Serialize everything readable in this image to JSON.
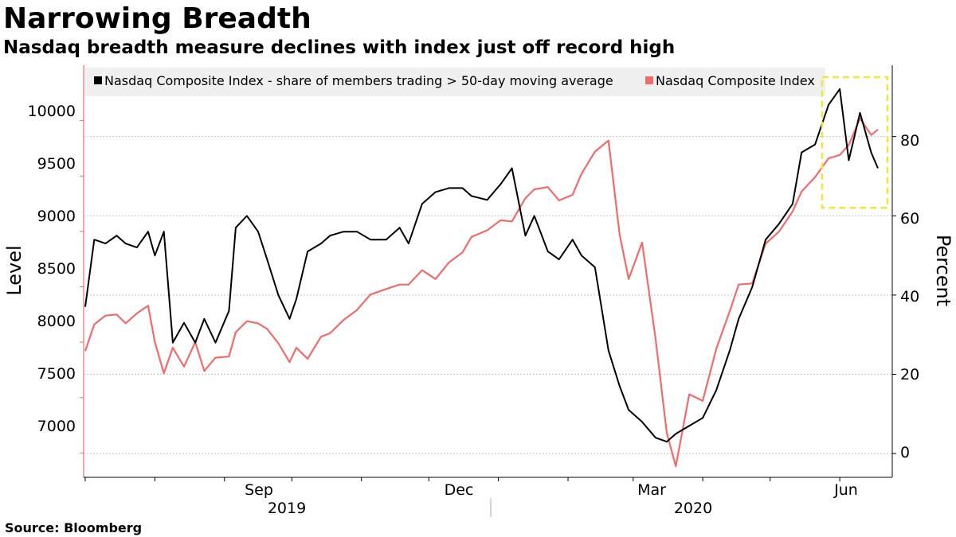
{
  "title": "Narrowing Breadth",
  "subtitle": "Nasdaq breadth measure declines with index just off record high",
  "source": "Source: Bloomberg",
  "chart_data": {
    "type": "line",
    "legend_position": "top",
    "ylabel_left": "Level",
    "ylabel_right": "Percent",
    "ylim_left": [
      6780,
      10500
    ],
    "ylim_right": [
      -6,
      98
    ],
    "yticks_left": [
      "7000",
      "7500",
      "8000",
      "8500",
      "9000",
      "9500",
      "10000"
    ],
    "yticks_right": [
      "0",
      "20",
      "40",
      "60",
      "80"
    ],
    "x_month_labels": [
      "Sep",
      "Dec",
      "Mar",
      "Jun"
    ],
    "x_year_labels": [
      "2019",
      "2020"
    ],
    "grid": true,
    "highlight_box": {
      "color": "#f2e53a",
      "style": "dashed",
      "x_range": [
        "2020-05-27",
        "2020-06-18"
      ],
      "y_range_percent": [
        62,
        95
      ]
    },
    "series": [
      {
        "name": "Nasdaq Composite Index - share of members trading > 50-day moving average",
        "axis": "right",
        "color": "#000000",
        "x": [
          "2019-07-01",
          "2019-07-05",
          "2019-07-10",
          "2019-07-15",
          "2019-07-19",
          "2019-07-24",
          "2019-07-29",
          "2019-08-01",
          "2019-08-05",
          "2019-08-09",
          "2019-08-14",
          "2019-08-19",
          "2019-08-23",
          "2019-08-28",
          "2019-09-03",
          "2019-09-06",
          "2019-09-11",
          "2019-09-16",
          "2019-09-20",
          "2019-09-25",
          "2019-09-30",
          "2019-10-03",
          "2019-10-08",
          "2019-10-14",
          "2019-10-18",
          "2019-10-24",
          "2019-10-30",
          "2019-11-05",
          "2019-11-12",
          "2019-11-18",
          "2019-11-22",
          "2019-11-28",
          "2019-12-04",
          "2019-12-10",
          "2019-12-16",
          "2019-12-20",
          "2019-12-27",
          "2020-01-02",
          "2020-01-07",
          "2020-01-13",
          "2020-01-17",
          "2020-01-23",
          "2020-01-28",
          "2020-02-03",
          "2020-02-07",
          "2020-02-13",
          "2020-02-19",
          "2020-02-24",
          "2020-02-28",
          "2020-03-05",
          "2020-03-11",
          "2020-03-16",
          "2020-03-20",
          "2020-03-26",
          "2020-04-01",
          "2020-04-07",
          "2020-04-13",
          "2020-04-17",
          "2020-04-23",
          "2020-04-29",
          "2020-05-05",
          "2020-05-11",
          "2020-05-15",
          "2020-05-21",
          "2020-05-27",
          "2020-06-01",
          "2020-06-05",
          "2020-06-10",
          "2020-06-15",
          "2020-06-18"
        ],
        "values": [
          37,
          54,
          53,
          55,
          53,
          52,
          56,
          50,
          56,
          28,
          33,
          28,
          34,
          28,
          36,
          57,
          60,
          56,
          49,
          40,
          34,
          39,
          51,
          53,
          55,
          56,
          56,
          54,
          54,
          57,
          53,
          63,
          66,
          67,
          67,
          65,
          64,
          68,
          72,
          55,
          60,
          51,
          49,
          54,
          50,
          47,
          26,
          17,
          11,
          8,
          4,
          3,
          5,
          7,
          9,
          16,
          26,
          34,
          42,
          54,
          58,
          63,
          76,
          78,
          88,
          92,
          74,
          86,
          76,
          72
        ]
      },
      {
        "name": "Nasdaq Composite Index",
        "axis": "left",
        "color": "#f26b6b",
        "x": [
          "2019-07-01",
          "2019-07-05",
          "2019-07-10",
          "2019-07-15",
          "2019-07-19",
          "2019-07-24",
          "2019-07-29",
          "2019-08-01",
          "2019-08-05",
          "2019-08-09",
          "2019-08-14",
          "2019-08-19",
          "2019-08-23",
          "2019-08-28",
          "2019-09-03",
          "2019-09-06",
          "2019-09-11",
          "2019-09-16",
          "2019-09-20",
          "2019-09-25",
          "2019-09-30",
          "2019-10-03",
          "2019-10-08",
          "2019-10-14",
          "2019-10-18",
          "2019-10-24",
          "2019-10-30",
          "2019-11-05",
          "2019-11-12",
          "2019-11-18",
          "2019-11-22",
          "2019-11-28",
          "2019-12-04",
          "2019-12-10",
          "2019-12-16",
          "2019-12-20",
          "2019-12-27",
          "2020-01-02",
          "2020-01-07",
          "2020-01-13",
          "2020-01-17",
          "2020-01-23",
          "2020-01-28",
          "2020-02-03",
          "2020-02-07",
          "2020-02-13",
          "2020-02-19",
          "2020-02-24",
          "2020-02-28",
          "2020-03-05",
          "2020-03-11",
          "2020-03-16",
          "2020-03-20",
          "2020-03-26",
          "2020-04-01",
          "2020-04-07",
          "2020-04-13",
          "2020-04-17",
          "2020-04-23",
          "2020-04-29",
          "2020-05-05",
          "2020-05-11",
          "2020-05-15",
          "2020-05-21",
          "2020-05-27",
          "2020-06-01",
          "2020-06-05",
          "2020-06-10",
          "2020-06-15",
          "2020-06-18"
        ],
        "values": [
          7920,
          8160,
          8240,
          8250,
          8170,
          8260,
          8330,
          8000,
          7720,
          7950,
          7780,
          8000,
          7740,
          7860,
          7870,
          8090,
          8190,
          8170,
          8120,
          7990,
          7820,
          7950,
          7850,
          8050,
          8080,
          8200,
          8290,
          8430,
          8480,
          8520,
          8520,
          8650,
          8570,
          8720,
          8810,
          8950,
          9010,
          9100,
          9090,
          9300,
          9380,
          9400,
          9280,
          9330,
          9520,
          9720,
          9820,
          8970,
          8570,
          8900,
          8030,
          7180,
          6880,
          7530,
          7470,
          7940,
          8280,
          8520,
          8530,
          8890,
          9000,
          9180,
          9360,
          9490,
          9660,
          9690,
          9780,
          10020,
          9870,
          9920
        ]
      }
    ]
  }
}
